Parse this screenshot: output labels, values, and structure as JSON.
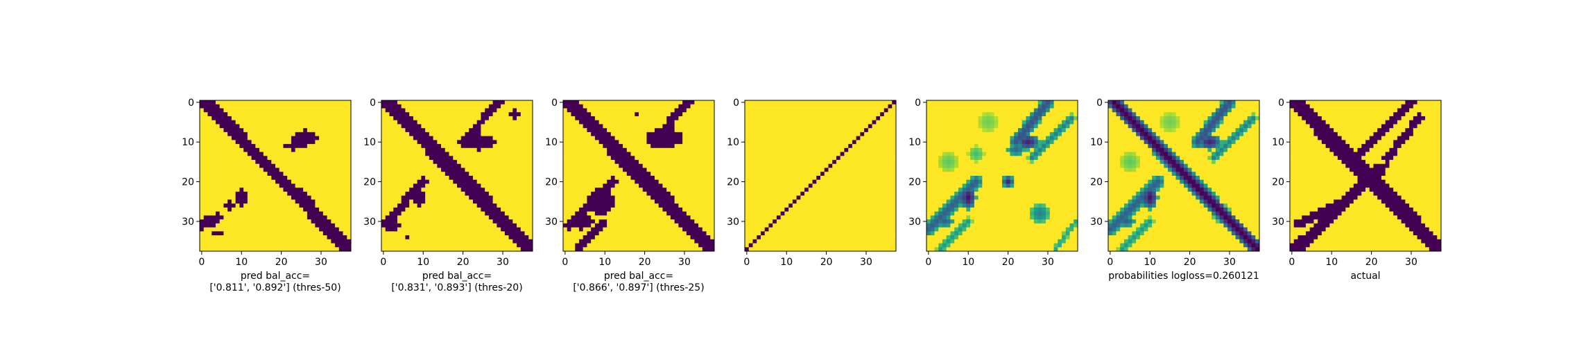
{
  "figure": {
    "background": "#ffffff"
  },
  "colors": {
    "low": "#440154",
    "high": "#fde725",
    "frame": "#000000"
  },
  "chart_data": [
    {
      "type": "heatmap",
      "name": "pred-thres-50",
      "size": 38,
      "colormap": "viridis",
      "binary": true,
      "xticks": [
        0,
        10,
        20,
        30
      ],
      "yticks": [
        0,
        10,
        20,
        30
      ],
      "xlabel_lines": [
        "pred bal_acc=",
        "['0.811', '0.892'] (thres-50)"
      ],
      "regions": [
        {
          "shape": "diag",
          "from": [
            1,
            0
          ],
          "to": [
            37,
            37
          ],
          "width": 1.6
        },
        {
          "shape": "diag",
          "from": [
            0,
            31
          ],
          "to": [
            4,
            29
          ],
          "width": 1.0
        },
        {
          "shape": "blob",
          "center": [
            26,
            9
          ],
          "radius": [
            3.2,
            2.0
          ]
        },
        {
          "shape": "blob",
          "center": [
            23,
            11
          ],
          "radius": [
            2.0,
            1.0
          ]
        },
        {
          "shape": "blob",
          "center": [
            10,
            24
          ],
          "radius": [
            1.3,
            2.5
          ]
        },
        {
          "shape": "blob",
          "center": [
            7,
            26
          ],
          "radius": [
            1.5,
            1.0
          ]
        },
        {
          "shape": "blob",
          "center": [
            2,
            30
          ],
          "radius": [
            2.0,
            1.2
          ]
        },
        {
          "shape": "blob",
          "center": [
            4,
            33
          ],
          "radius": [
            1.0,
            0.8
          ]
        },
        {
          "shape": "diag",
          "from": [
            25,
            22
          ],
          "to": [
            33,
            33
          ],
          "width": 0.8
        }
      ]
    },
    {
      "type": "heatmap",
      "name": "pred-thres-20",
      "size": 38,
      "colormap": "viridis",
      "binary": true,
      "xticks": [
        0,
        10,
        20,
        30
      ],
      "yticks": [
        0,
        10,
        20,
        30
      ],
      "xlabel_lines": [
        "pred bal_acc=",
        "['0.831', '0.893'] (thres-20)"
      ],
      "regions": [
        {
          "shape": "diag",
          "from": [
            1,
            0
          ],
          "to": [
            37,
            37
          ],
          "width": 1.9
        },
        {
          "shape": "diag",
          "from": [
            29,
            0
          ],
          "to": [
            20,
            10
          ],
          "width": 1.0
        },
        {
          "shape": "blob",
          "center": [
            24,
            10
          ],
          "radius": [
            4.0,
            2.0
          ]
        },
        {
          "shape": "blob",
          "center": [
            33,
            3
          ],
          "radius": [
            1.5,
            1.0
          ]
        },
        {
          "shape": "diag",
          "from": [
            10,
            20
          ],
          "to": [
            1,
            30
          ],
          "width": 1.1
        },
        {
          "shape": "blob",
          "center": [
            9,
            24
          ],
          "radius": [
            1.5,
            2.5
          ]
        },
        {
          "shape": "blob",
          "center": [
            2,
            31
          ],
          "radius": [
            2.0,
            1.5
          ]
        },
        {
          "shape": "blob",
          "center": [
            6,
            34
          ],
          "radius": [
            0.8,
            0.6
          ]
        }
      ]
    },
    {
      "type": "heatmap",
      "name": "pred-thres-25",
      "size": 38,
      "colormap": "viridis",
      "binary": true,
      "xticks": [
        0,
        10,
        20,
        30
      ],
      "yticks": [
        0,
        10,
        20,
        30
      ],
      "xlabel_lines": [
        "pred bal_acc=",
        "['0.866', '0.897'] (thres-25)"
      ],
      "regions": [
        {
          "shape": "diag",
          "from": [
            1,
            0
          ],
          "to": [
            37,
            37
          ],
          "width": 1.9
        },
        {
          "shape": "diag",
          "from": [
            31,
            0
          ],
          "to": [
            22,
            10
          ],
          "width": 1.1
        },
        {
          "shape": "blob",
          "center": [
            25,
            9
          ],
          "radius": [
            4.5,
            2.5
          ]
        },
        {
          "shape": "blob",
          "center": [
            18,
            3
          ],
          "radius": [
            0.7,
            0.9
          ]
        },
        {
          "shape": "diag",
          "from": [
            12,
            20
          ],
          "to": [
            1,
            31
          ],
          "width": 1.3
        },
        {
          "shape": "blob",
          "center": [
            9,
            25
          ],
          "radius": [
            3.5,
            3.5
          ]
        },
        {
          "shape": "blob",
          "center": [
            4,
            30
          ],
          "radius": [
            3.0,
            2.0
          ]
        },
        {
          "shape": "diag",
          "from": [
            10,
            30
          ],
          "to": [
            3,
            37
          ],
          "width": 0.8
        }
      ]
    },
    {
      "type": "heatmap",
      "name": "anti-diagonal",
      "size": 38,
      "colormap": "viridis",
      "binary": true,
      "xticks": [
        0,
        10,
        20,
        30
      ],
      "yticks": [
        0,
        10,
        20,
        30
      ],
      "xlabel_lines": [],
      "regions": [
        {
          "shape": "antidiag",
          "from": [
            0,
            37
          ],
          "to": [
            37,
            0
          ]
        }
      ]
    },
    {
      "type": "heatmap",
      "name": "probabilities-smooth",
      "size": 38,
      "colormap": "viridis",
      "binary": false,
      "xticks": [
        0,
        10,
        20,
        30
      ],
      "yticks": [
        0,
        10,
        20,
        30
      ],
      "xlabel_lines": [],
      "regions": [
        {
          "shape": "diag",
          "from": [
            30,
            0
          ],
          "to": [
            22,
            10
          ],
          "width": 1.6,
          "level": 0.25
        },
        {
          "shape": "blob",
          "center": [
            25,
            10
          ],
          "radius": [
            3.0,
            2.0
          ],
          "level": 0.1
        },
        {
          "shape": "blob",
          "center": [
            22,
            12
          ],
          "radius": [
            2.5,
            1.5
          ],
          "level": 0.35
        },
        {
          "shape": "diag",
          "from": [
            36,
            4
          ],
          "to": [
            26,
            14
          ],
          "width": 1.0,
          "level": 0.45
        },
        {
          "shape": "diag",
          "from": [
            12,
            20
          ],
          "to": [
            0,
            32
          ],
          "width": 1.6,
          "level": 0.3
        },
        {
          "shape": "blob",
          "center": [
            10,
            24
          ],
          "radius": [
            2.0,
            3.0
          ],
          "level": 0.05
        },
        {
          "shape": "blob",
          "center": [
            4,
            30
          ],
          "radius": [
            2.5,
            1.5
          ],
          "level": 0.3
        },
        {
          "shape": "blob",
          "center": [
            20,
            20
          ],
          "radius": [
            1.5,
            1.5
          ],
          "level": 0.1
        },
        {
          "shape": "blob",
          "center": [
            28,
            28
          ],
          "radius": [
            2.5,
            2.5
          ],
          "level": 0.45
        },
        {
          "shape": "blob",
          "center": [
            5,
            15
          ],
          "radius": [
            2.5,
            2.5
          ],
          "level": 0.75
        },
        {
          "shape": "blob",
          "center": [
            12,
            13
          ],
          "radius": [
            2.0,
            2.0
          ],
          "level": 0.7
        },
        {
          "shape": "blob",
          "center": [
            15,
            5
          ],
          "radius": [
            2.5,
            2.5
          ],
          "level": 0.78
        },
        {
          "shape": "diag",
          "from": [
            10,
            30
          ],
          "to": [
            3,
            37
          ],
          "width": 1.0,
          "level": 0.55
        },
        {
          "shape": "diag",
          "from": [
            37,
            30
          ],
          "to": [
            32,
            37
          ],
          "width": 0.8,
          "level": 0.6
        }
      ]
    },
    {
      "type": "heatmap",
      "name": "probabilities",
      "size": 38,
      "colormap": "viridis",
      "binary": false,
      "xticks": [
        0,
        10,
        20,
        30
      ],
      "yticks": [
        0,
        10,
        20,
        30
      ],
      "xlabel_lines": [
        "probabilities logloss=0.260121"
      ],
      "regions": [
        {
          "shape": "diag",
          "from": [
            1,
            0
          ],
          "to": [
            37,
            37
          ],
          "width": 1.9,
          "level": 0.0
        },
        {
          "shape": "diag",
          "from": [
            30,
            0
          ],
          "to": [
            22,
            10
          ],
          "width": 1.6,
          "level": 0.25
        },
        {
          "shape": "blob",
          "center": [
            25,
            10
          ],
          "radius": [
            3.0,
            2.0
          ],
          "level": 0.1
        },
        {
          "shape": "diag",
          "from": [
            36,
            4
          ],
          "to": [
            26,
            14
          ],
          "width": 1.0,
          "level": 0.45
        },
        {
          "shape": "diag",
          "from": [
            12,
            20
          ],
          "to": [
            0,
            32
          ],
          "width": 1.6,
          "level": 0.3
        },
        {
          "shape": "blob",
          "center": [
            10,
            24
          ],
          "radius": [
            2.0,
            3.0
          ],
          "level": 0.05
        },
        {
          "shape": "blob",
          "center": [
            4,
            30
          ],
          "radius": [
            2.5,
            1.5
          ],
          "level": 0.3
        },
        {
          "shape": "blob",
          "center": [
            28,
            28
          ],
          "radius": [
            2.5,
            2.5
          ],
          "level": 0.5
        },
        {
          "shape": "blob",
          "center": [
            5,
            15
          ],
          "radius": [
            2.5,
            2.5
          ],
          "level": 0.75
        },
        {
          "shape": "blob",
          "center": [
            15,
            5
          ],
          "radius": [
            2.5,
            2.5
          ],
          "level": 0.78
        },
        {
          "shape": "diag",
          "from": [
            10,
            30
          ],
          "to": [
            3,
            37
          ],
          "width": 1.0,
          "level": 0.55
        }
      ]
    },
    {
      "type": "heatmap",
      "name": "actual",
      "size": 38,
      "colormap": "viridis",
      "binary": true,
      "xticks": [
        0,
        10,
        20,
        30
      ],
      "yticks": [
        0,
        10,
        20,
        30
      ],
      "xlabel_lines": [
        "actual"
      ],
      "regions": [
        {
          "shape": "diag",
          "from": [
            1,
            0
          ],
          "to": [
            37,
            37
          ],
          "width": 2.0
        },
        {
          "shape": "diag",
          "from": [
            30,
            0
          ],
          "to": [
            17,
            13
          ],
          "width": 1.1
        },
        {
          "shape": "diag",
          "from": [
            32,
            4
          ],
          "to": [
            24,
            14
          ],
          "width": 1.0
        },
        {
          "shape": "diag",
          "from": [
            22,
            17
          ],
          "to": [
            1,
            37
          ],
          "width": 1.5
        },
        {
          "shape": "diag",
          "from": [
            15,
            24
          ],
          "to": [
            1,
            31
          ],
          "width": 0.9
        },
        {
          "shape": "blob",
          "center": [
            19,
            19
          ],
          "radius": [
            2.5,
            2.0
          ]
        },
        {
          "shape": "blob",
          "center": [
            23,
            16
          ],
          "radius": [
            1.0,
            0.6
          ]
        }
      ]
    }
  ]
}
